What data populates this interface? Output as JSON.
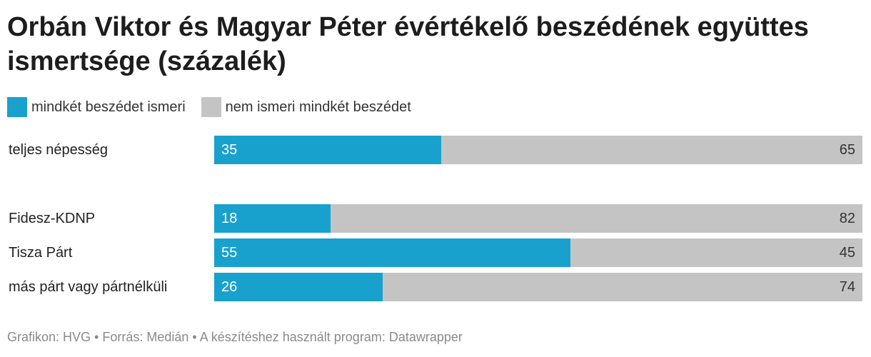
{
  "chart_data": {
    "type": "bar",
    "stacked": true,
    "orientation": "horizontal",
    "title": "Orbán Viktor és Magyar Péter évértékelő beszédének együttes ismertsége (százalék)",
    "legend_placement": "top-left",
    "colors": {
      "mindket": "#18a1cd",
      "nem": "#c4c4c4"
    },
    "series": [
      {
        "name": "mindkét beszédet ismeri",
        "values": [
          35,
          18,
          55,
          26
        ]
      },
      {
        "name": "nem ismeri mindkét beszédet",
        "values": [
          65,
          82,
          45,
          74
        ]
      }
    ],
    "categories": [
      "teljes népesség",
      "Fidesz-KDNP",
      "Tisza Párt",
      "más párt vagy pártnélküli"
    ],
    "xlim": [
      0,
      100
    ],
    "grid": false
  },
  "footer": "Grafikon: HVG • Forrás: Medián • A készítéshez használt program: Datawrapper"
}
